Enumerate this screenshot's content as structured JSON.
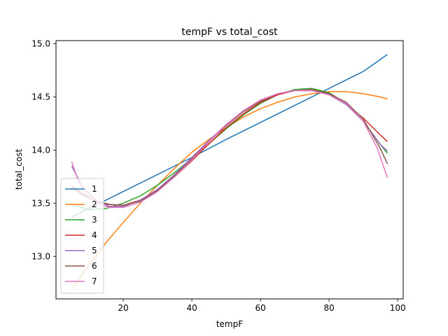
{
  "chart_data": {
    "type": "line",
    "title": "tempF vs total_cost",
    "xlabel": "tempF",
    "ylabel": "total_cost",
    "xlim": [
      0.4,
      101.6
    ],
    "ylim": [
      12.6,
      15.03
    ],
    "xticks": [
      20,
      40,
      60,
      80,
      100
    ],
    "yticks": [
      13.0,
      13.5,
      14.0,
      14.5,
      15.0
    ],
    "legend_position": "lower-left",
    "grid": false,
    "series": [
      {
        "name": "1",
        "color": "#1f77b4",
        "x": [
          5,
          10,
          20,
          30,
          40,
          50,
          60,
          70,
          80,
          90,
          97
        ],
        "y": [
          13.37,
          13.45,
          13.61,
          13.77,
          13.93,
          14.1,
          14.26,
          14.42,
          14.58,
          14.74,
          14.9
        ]
      },
      {
        "name": "2",
        "color": "#ff7f0e",
        "x": [
          5,
          10,
          15,
          20,
          25,
          30,
          35,
          40,
          45,
          50,
          55,
          60,
          65,
          70,
          75,
          80,
          85,
          90,
          95,
          97
        ],
        "y": [
          12.69,
          12.92,
          13.13,
          13.32,
          13.5,
          13.67,
          13.83,
          13.98,
          14.1,
          14.21,
          14.31,
          14.39,
          14.45,
          14.5,
          14.53,
          14.55,
          14.55,
          14.53,
          14.5,
          14.48
        ]
      },
      {
        "name": "3",
        "color": "#2ca02c",
        "x": [
          5,
          10,
          15,
          20,
          25,
          30,
          35,
          40,
          45,
          50,
          55,
          60,
          65,
          70,
          75,
          80,
          85,
          90,
          95,
          97
        ],
        "y": [
          13.49,
          13.44,
          13.45,
          13.5,
          13.57,
          13.67,
          13.79,
          13.92,
          14.06,
          14.2,
          14.33,
          14.44,
          14.52,
          14.57,
          14.58,
          14.54,
          14.44,
          14.27,
          14.05,
          13.97
        ]
      },
      {
        "name": "4",
        "color": "#d62728",
        "x": [
          5,
          10,
          15,
          20,
          25,
          30,
          35,
          40,
          45,
          50,
          55,
          60,
          65,
          70,
          75,
          80,
          85,
          90,
          95,
          97
        ],
        "y": [
          13.66,
          13.55,
          13.49,
          13.48,
          13.53,
          13.62,
          13.75,
          13.9,
          14.06,
          14.21,
          14.34,
          14.45,
          14.52,
          14.56,
          14.56,
          14.52,
          14.43,
          14.3,
          14.14,
          14.08
        ]
      },
      {
        "name": "5",
        "color": "#9467bd",
        "x": [
          5,
          8,
          12,
          16,
          20,
          25,
          30,
          35,
          40,
          45,
          50,
          55,
          60,
          65,
          70,
          75,
          80,
          85,
          90,
          95,
          97
        ],
        "y": [
          13.85,
          13.66,
          13.53,
          13.47,
          13.47,
          13.53,
          13.63,
          13.77,
          13.93,
          14.09,
          14.24,
          14.37,
          14.47,
          14.53,
          14.56,
          14.56,
          14.52,
          14.43,
          14.27,
          14.05,
          13.99
        ]
      },
      {
        "name": "6",
        "color": "#8c564b",
        "x": [
          5,
          8,
          12,
          16,
          20,
          25,
          30,
          35,
          40,
          45,
          50,
          55,
          60,
          65,
          70,
          75,
          80,
          85,
          90,
          95,
          97
        ],
        "y": [
          13.65,
          13.58,
          13.52,
          13.49,
          13.48,
          13.52,
          13.62,
          13.76,
          13.92,
          14.08,
          14.23,
          14.36,
          14.46,
          14.53,
          14.56,
          14.57,
          14.53,
          14.45,
          14.29,
          14.01,
          13.87
        ]
      },
      {
        "name": "7",
        "color": "#e377c2",
        "x": [
          5,
          7,
          10,
          13,
          16,
          20,
          25,
          30,
          35,
          40,
          45,
          50,
          55,
          60,
          65,
          70,
          75,
          80,
          85,
          90,
          94,
          97
        ],
        "y": [
          13.89,
          13.7,
          13.56,
          13.49,
          13.46,
          13.46,
          13.51,
          13.61,
          13.75,
          13.91,
          14.08,
          14.24,
          14.37,
          14.47,
          14.53,
          14.56,
          14.56,
          14.52,
          14.44,
          14.27,
          14.02,
          13.74
        ]
      }
    ]
  }
}
